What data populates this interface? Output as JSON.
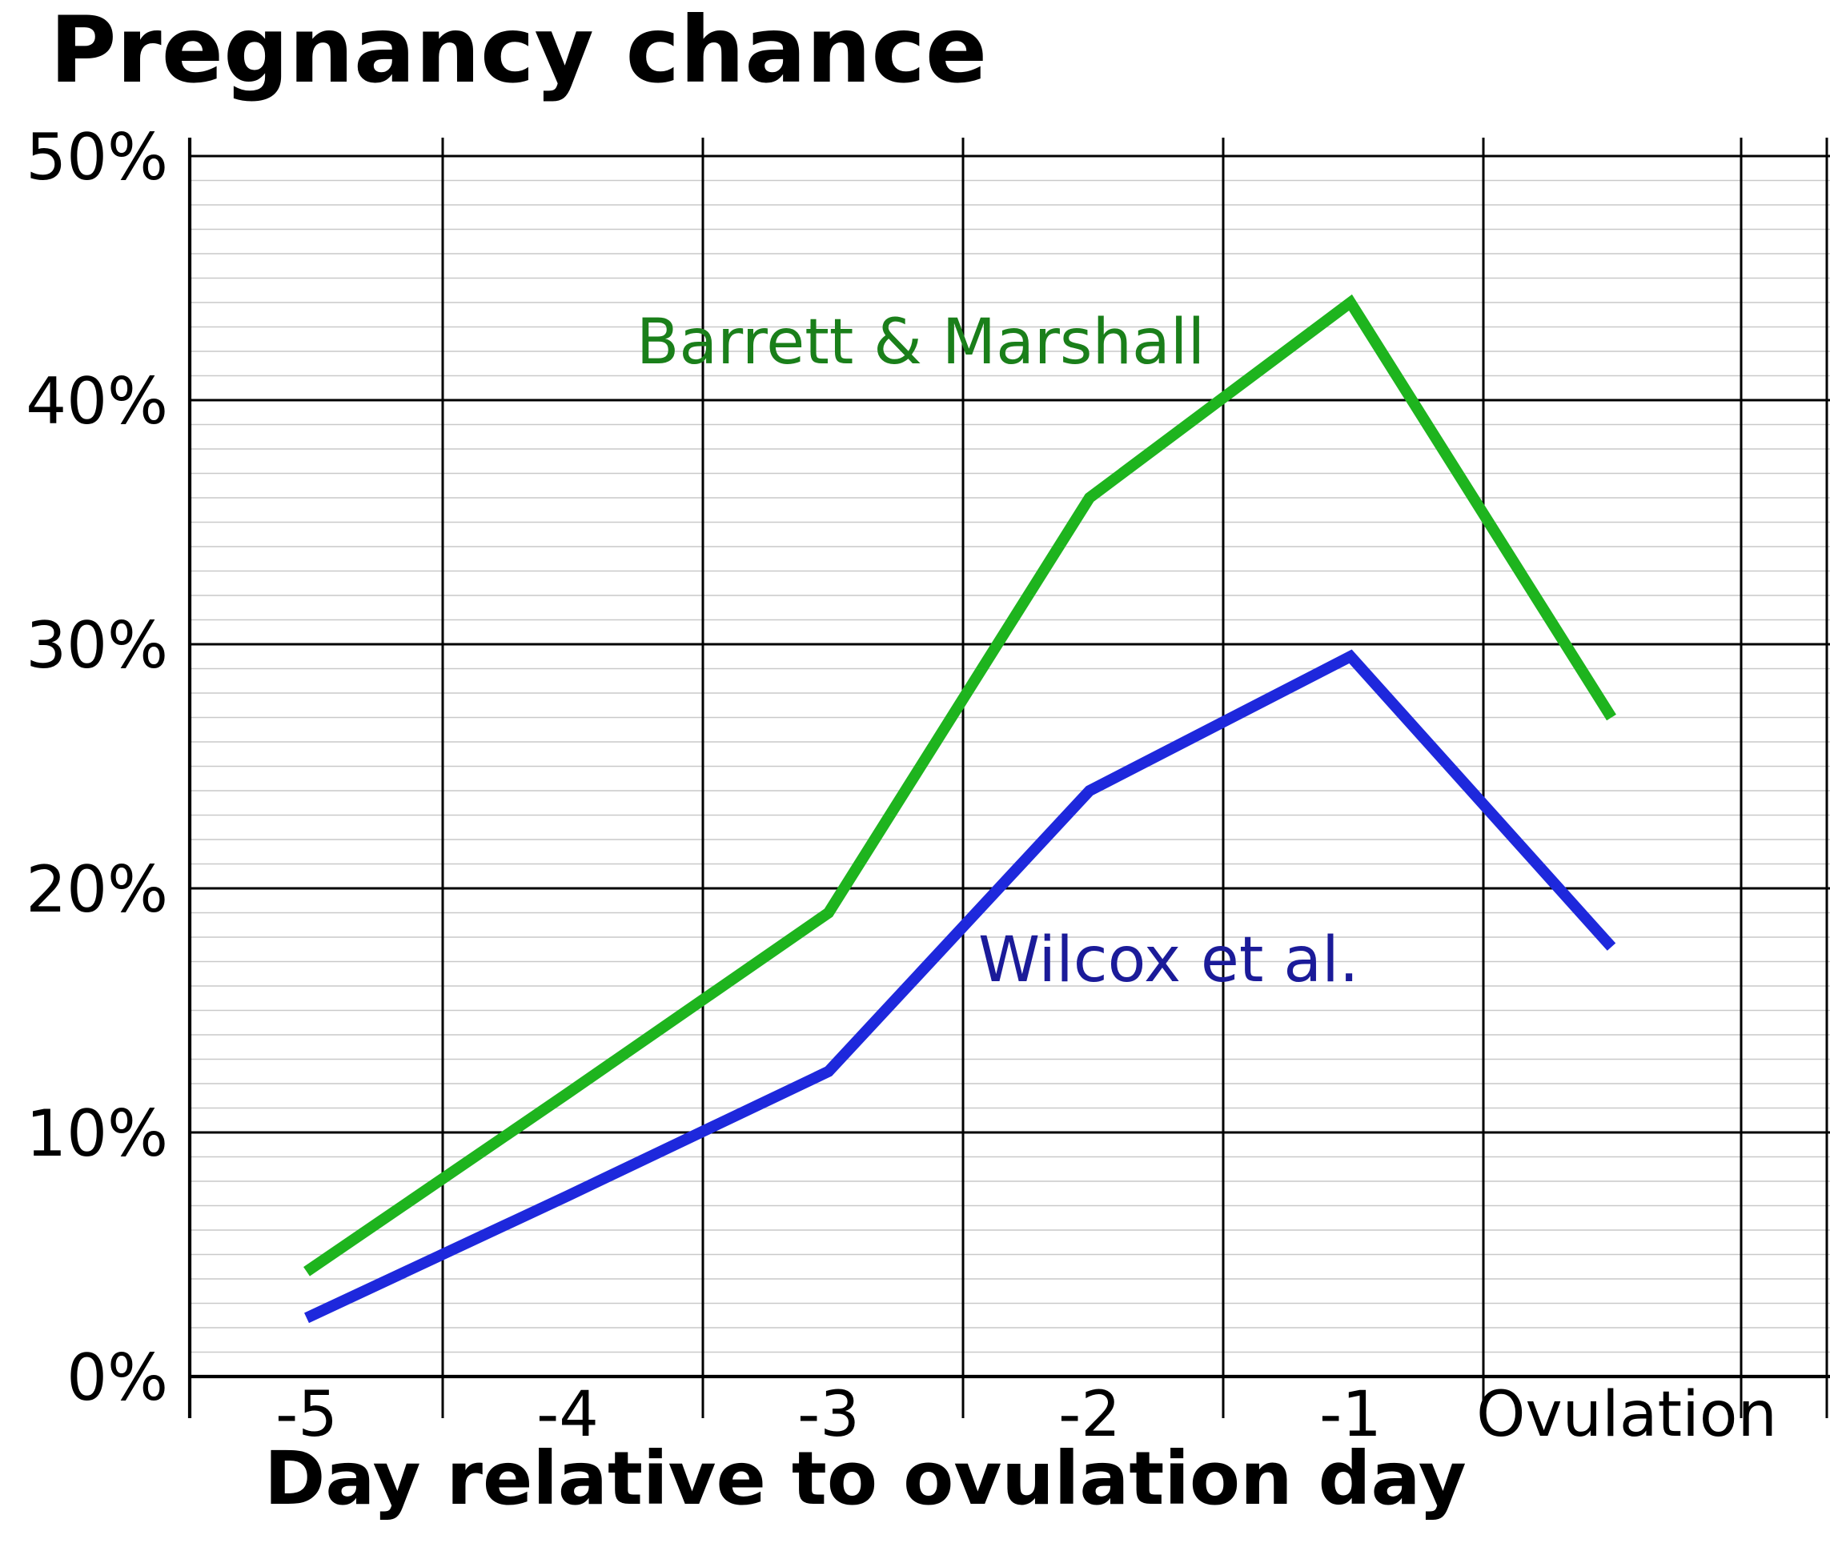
{
  "chart_data": {
    "type": "line",
    "title": "Pregnancy chance",
    "xlabel": "Day relative to ovulation day",
    "ylabel": "",
    "x_categories": [
      "-5",
      "-4",
      "-3",
      "-2",
      "-1",
      "Ovulation"
    ],
    "y_ticks": [
      {
        "value": 0,
        "label": "0%"
      },
      {
        "value": 10,
        "label": "10%"
      },
      {
        "value": 20,
        "label": "20%"
      },
      {
        "value": 30,
        "label": "30%"
      },
      {
        "value": 40,
        "label": "40%"
      },
      {
        "value": 50,
        "label": "50%"
      }
    ],
    "ylim": [
      0,
      50
    ],
    "minor_grid_step_percent": 1,
    "major_grid_step_percent": 10,
    "grid": true,
    "legend_position": "inline-labels",
    "series": [
      {
        "name": "Barrett & Marshall",
        "color": "#1eb41e",
        "label_color": "#1a7f1a",
        "values": [
          4.3,
          11.6,
          19,
          36,
          44,
          27
        ]
      },
      {
        "name": "Wilcox et al.",
        "color": "#1e28dc",
        "label_color": "#1b1b99",
        "values": [
          2.4,
          7.4,
          12.5,
          24,
          29.5,
          17.6
        ]
      }
    ],
    "colors": {
      "background": "#ffffff",
      "grid_minor": "#c9c9c9",
      "grid_major": "#000000",
      "axis": "#000000",
      "text": "#000000"
    }
  }
}
